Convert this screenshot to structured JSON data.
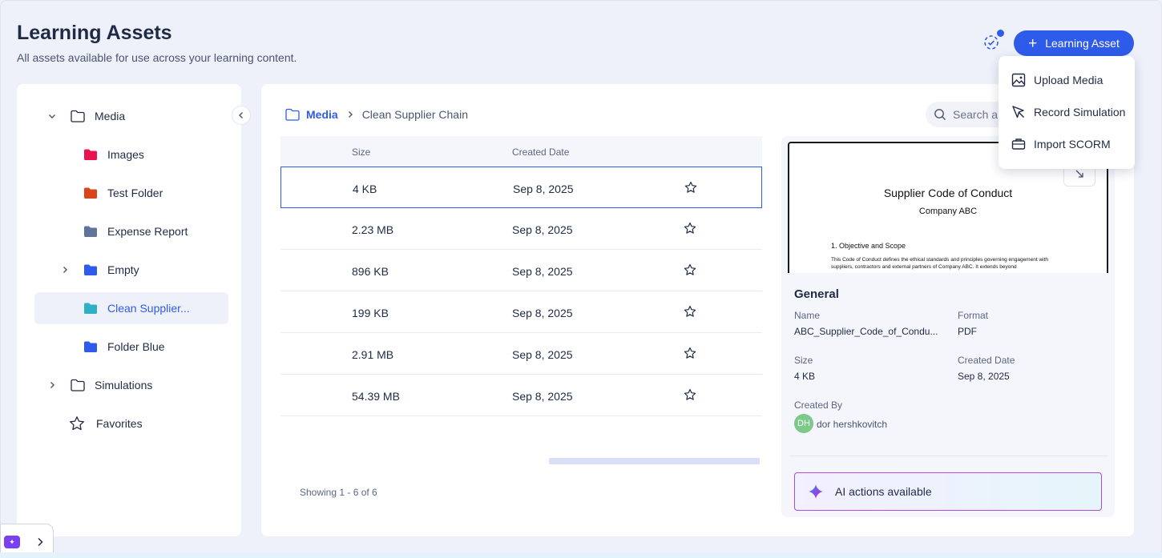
{
  "header": {
    "title": "Learning Assets",
    "subtitle": "All assets available for use across your learning content.",
    "add_button_label": "Learning Asset"
  },
  "add_menu": {
    "items": [
      {
        "label": "Upload Media",
        "icon": "image-icon"
      },
      {
        "label": "Record Simulation",
        "icon": "cursor-icon"
      },
      {
        "label": "Import SCORM",
        "icon": "briefcase-icon"
      }
    ]
  },
  "sidebar": {
    "items": [
      {
        "label": "Media",
        "icon": "folder-outline-icon",
        "expanded": true
      },
      {
        "label": "Images",
        "color": "#e8134f"
      },
      {
        "label": "Test Folder",
        "color": "#d9441b"
      },
      {
        "label": "Expense Report",
        "color": "#607499"
      },
      {
        "label": "Empty",
        "color": "#2f5bea",
        "expandable": true
      },
      {
        "label": "Clean Supplier...",
        "color": "#2fb0c5",
        "selected": true
      },
      {
        "label": "Folder Blue",
        "color": "#2f5bea"
      },
      {
        "label": "Simulations",
        "icon": "folder-outline-icon",
        "expandable": true
      },
      {
        "label": "Favorites",
        "icon": "star-icon"
      }
    ]
  },
  "breadcrumb": {
    "root": "Media",
    "current": "Clean Supplier Chain"
  },
  "search": {
    "placeholder": "Search a"
  },
  "table": {
    "columns": [
      "Size",
      "Created Date"
    ],
    "rows": [
      {
        "size": "4 KB",
        "date": "Sep 8, 2025",
        "selected": true
      },
      {
        "size": "2.23 MB",
        "date": "Sep 8, 2025"
      },
      {
        "size": "896 KB",
        "date": "Sep 8, 2025"
      },
      {
        "size": "199 KB",
        "date": "Sep 8, 2025"
      },
      {
        "size": "2.91 MB",
        "date": "Sep 8, 2025"
      },
      {
        "size": "54.39 MB",
        "date": "Sep 8, 2025"
      }
    ],
    "showing": "Showing 1 - 6 of 6"
  },
  "preview": {
    "doc_title": "Supplier Code of Conduct",
    "doc_company": "Company ABC",
    "doc_section": "1. Objective and Scope",
    "doc_body": "This Code of Conduct defines the ethical standards and principles governing engagement with suppliers, contractors and external partners of Company ABC. It extends beyond"
  },
  "details": {
    "section_title": "General",
    "name_label": "Name",
    "name_value": "ABC_Supplier_Code_of_Condu...",
    "format_label": "Format",
    "format_value": "PDF",
    "size_label": "Size",
    "size_value": "4 KB",
    "created_date_label": "Created Date",
    "created_date_value": "Sep 8, 2025",
    "created_by_label": "Created By",
    "created_by_initials": "DH",
    "created_by_name": "dor hershkovitch"
  },
  "ai": {
    "label": "AI actions available"
  },
  "colors": {
    "accent": "#2f5bea",
    "ai_border": "#b04bd8"
  }
}
